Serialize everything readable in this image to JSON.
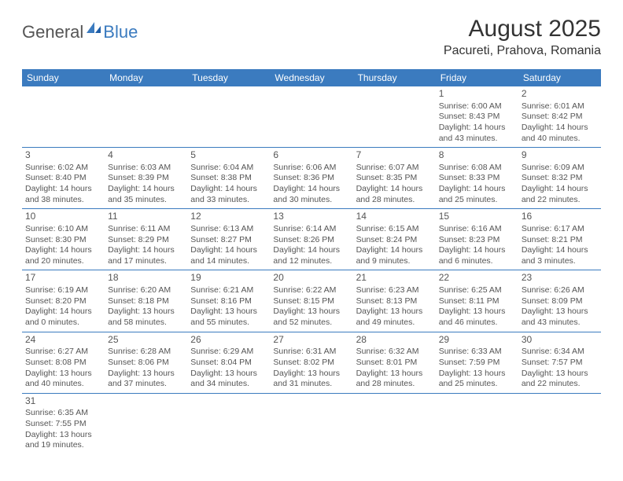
{
  "logo": {
    "part1": "General",
    "part2": "Blue"
  },
  "title": "August 2025",
  "location": "Pacureti, Prahova, Romania",
  "colors": {
    "header_bg": "#3b7bbf",
    "header_text": "#ffffff",
    "row_border": "#3b7bbf",
    "body_text": "#555555",
    "title_text": "#333333",
    "logo_gray": "#555555",
    "logo_blue": "#3b7bbf",
    "background": "#ffffff"
  },
  "days_of_week": [
    "Sunday",
    "Monday",
    "Tuesday",
    "Wednesday",
    "Thursday",
    "Friday",
    "Saturday"
  ],
  "weeks": [
    [
      null,
      null,
      null,
      null,
      null,
      {
        "n": "1",
        "sr": "Sunrise: 6:00 AM",
        "ss": "Sunset: 8:43 PM",
        "d1": "Daylight: 14 hours",
        "d2": "and 43 minutes."
      },
      {
        "n": "2",
        "sr": "Sunrise: 6:01 AM",
        "ss": "Sunset: 8:42 PM",
        "d1": "Daylight: 14 hours",
        "d2": "and 40 minutes."
      }
    ],
    [
      {
        "n": "3",
        "sr": "Sunrise: 6:02 AM",
        "ss": "Sunset: 8:40 PM",
        "d1": "Daylight: 14 hours",
        "d2": "and 38 minutes."
      },
      {
        "n": "4",
        "sr": "Sunrise: 6:03 AM",
        "ss": "Sunset: 8:39 PM",
        "d1": "Daylight: 14 hours",
        "d2": "and 35 minutes."
      },
      {
        "n": "5",
        "sr": "Sunrise: 6:04 AM",
        "ss": "Sunset: 8:38 PM",
        "d1": "Daylight: 14 hours",
        "d2": "and 33 minutes."
      },
      {
        "n": "6",
        "sr": "Sunrise: 6:06 AM",
        "ss": "Sunset: 8:36 PM",
        "d1": "Daylight: 14 hours",
        "d2": "and 30 minutes."
      },
      {
        "n": "7",
        "sr": "Sunrise: 6:07 AM",
        "ss": "Sunset: 8:35 PM",
        "d1": "Daylight: 14 hours",
        "d2": "and 28 minutes."
      },
      {
        "n": "8",
        "sr": "Sunrise: 6:08 AM",
        "ss": "Sunset: 8:33 PM",
        "d1": "Daylight: 14 hours",
        "d2": "and 25 minutes."
      },
      {
        "n": "9",
        "sr": "Sunrise: 6:09 AM",
        "ss": "Sunset: 8:32 PM",
        "d1": "Daylight: 14 hours",
        "d2": "and 22 minutes."
      }
    ],
    [
      {
        "n": "10",
        "sr": "Sunrise: 6:10 AM",
        "ss": "Sunset: 8:30 PM",
        "d1": "Daylight: 14 hours",
        "d2": "and 20 minutes."
      },
      {
        "n": "11",
        "sr": "Sunrise: 6:11 AM",
        "ss": "Sunset: 8:29 PM",
        "d1": "Daylight: 14 hours",
        "d2": "and 17 minutes."
      },
      {
        "n": "12",
        "sr": "Sunrise: 6:13 AM",
        "ss": "Sunset: 8:27 PM",
        "d1": "Daylight: 14 hours",
        "d2": "and 14 minutes."
      },
      {
        "n": "13",
        "sr": "Sunrise: 6:14 AM",
        "ss": "Sunset: 8:26 PM",
        "d1": "Daylight: 14 hours",
        "d2": "and 12 minutes."
      },
      {
        "n": "14",
        "sr": "Sunrise: 6:15 AM",
        "ss": "Sunset: 8:24 PM",
        "d1": "Daylight: 14 hours",
        "d2": "and 9 minutes."
      },
      {
        "n": "15",
        "sr": "Sunrise: 6:16 AM",
        "ss": "Sunset: 8:23 PM",
        "d1": "Daylight: 14 hours",
        "d2": "and 6 minutes."
      },
      {
        "n": "16",
        "sr": "Sunrise: 6:17 AM",
        "ss": "Sunset: 8:21 PM",
        "d1": "Daylight: 14 hours",
        "d2": "and 3 minutes."
      }
    ],
    [
      {
        "n": "17",
        "sr": "Sunrise: 6:19 AM",
        "ss": "Sunset: 8:20 PM",
        "d1": "Daylight: 14 hours",
        "d2": "and 0 minutes."
      },
      {
        "n": "18",
        "sr": "Sunrise: 6:20 AM",
        "ss": "Sunset: 8:18 PM",
        "d1": "Daylight: 13 hours",
        "d2": "and 58 minutes."
      },
      {
        "n": "19",
        "sr": "Sunrise: 6:21 AM",
        "ss": "Sunset: 8:16 PM",
        "d1": "Daylight: 13 hours",
        "d2": "and 55 minutes."
      },
      {
        "n": "20",
        "sr": "Sunrise: 6:22 AM",
        "ss": "Sunset: 8:15 PM",
        "d1": "Daylight: 13 hours",
        "d2": "and 52 minutes."
      },
      {
        "n": "21",
        "sr": "Sunrise: 6:23 AM",
        "ss": "Sunset: 8:13 PM",
        "d1": "Daylight: 13 hours",
        "d2": "and 49 minutes."
      },
      {
        "n": "22",
        "sr": "Sunrise: 6:25 AM",
        "ss": "Sunset: 8:11 PM",
        "d1": "Daylight: 13 hours",
        "d2": "and 46 minutes."
      },
      {
        "n": "23",
        "sr": "Sunrise: 6:26 AM",
        "ss": "Sunset: 8:09 PM",
        "d1": "Daylight: 13 hours",
        "d2": "and 43 minutes."
      }
    ],
    [
      {
        "n": "24",
        "sr": "Sunrise: 6:27 AM",
        "ss": "Sunset: 8:08 PM",
        "d1": "Daylight: 13 hours",
        "d2": "and 40 minutes."
      },
      {
        "n": "25",
        "sr": "Sunrise: 6:28 AM",
        "ss": "Sunset: 8:06 PM",
        "d1": "Daylight: 13 hours",
        "d2": "and 37 minutes."
      },
      {
        "n": "26",
        "sr": "Sunrise: 6:29 AM",
        "ss": "Sunset: 8:04 PM",
        "d1": "Daylight: 13 hours",
        "d2": "and 34 minutes."
      },
      {
        "n": "27",
        "sr": "Sunrise: 6:31 AM",
        "ss": "Sunset: 8:02 PM",
        "d1": "Daylight: 13 hours",
        "d2": "and 31 minutes."
      },
      {
        "n": "28",
        "sr": "Sunrise: 6:32 AM",
        "ss": "Sunset: 8:01 PM",
        "d1": "Daylight: 13 hours",
        "d2": "and 28 minutes."
      },
      {
        "n": "29",
        "sr": "Sunrise: 6:33 AM",
        "ss": "Sunset: 7:59 PM",
        "d1": "Daylight: 13 hours",
        "d2": "and 25 minutes."
      },
      {
        "n": "30",
        "sr": "Sunrise: 6:34 AM",
        "ss": "Sunset: 7:57 PM",
        "d1": "Daylight: 13 hours",
        "d2": "and 22 minutes."
      }
    ],
    [
      {
        "n": "31",
        "sr": "Sunrise: 6:35 AM",
        "ss": "Sunset: 7:55 PM",
        "d1": "Daylight: 13 hours",
        "d2": "and 19 minutes."
      },
      null,
      null,
      null,
      null,
      null,
      null
    ]
  ]
}
